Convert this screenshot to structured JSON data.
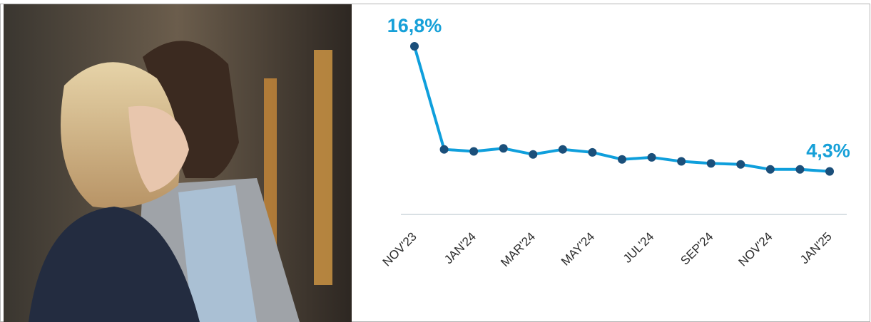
{
  "chart_data": {
    "type": "line",
    "categories": [
      "NOV'23",
      null,
      "JAN'24",
      null,
      "MAR'24",
      null,
      "MAY'24",
      null,
      "JUL'24",
      null,
      "SEP'24",
      null,
      "NOV'24",
      null,
      "JAN'25"
    ],
    "values": [
      16.8,
      6.5,
      6.3,
      6.6,
      6.0,
      6.5,
      6.2,
      5.5,
      5.7,
      5.3,
      5.1,
      5.0,
      4.5,
      4.5,
      4.3
    ],
    "value_labels": [
      "16,8%",
      null,
      null,
      null,
      null,
      null,
      null,
      null,
      null,
      null,
      null,
      null,
      null,
      null,
      "4,3%"
    ],
    "color": "#0f9fdc",
    "marker_color": "#1b4f7a",
    "label_color": "#16a0d8"
  }
}
